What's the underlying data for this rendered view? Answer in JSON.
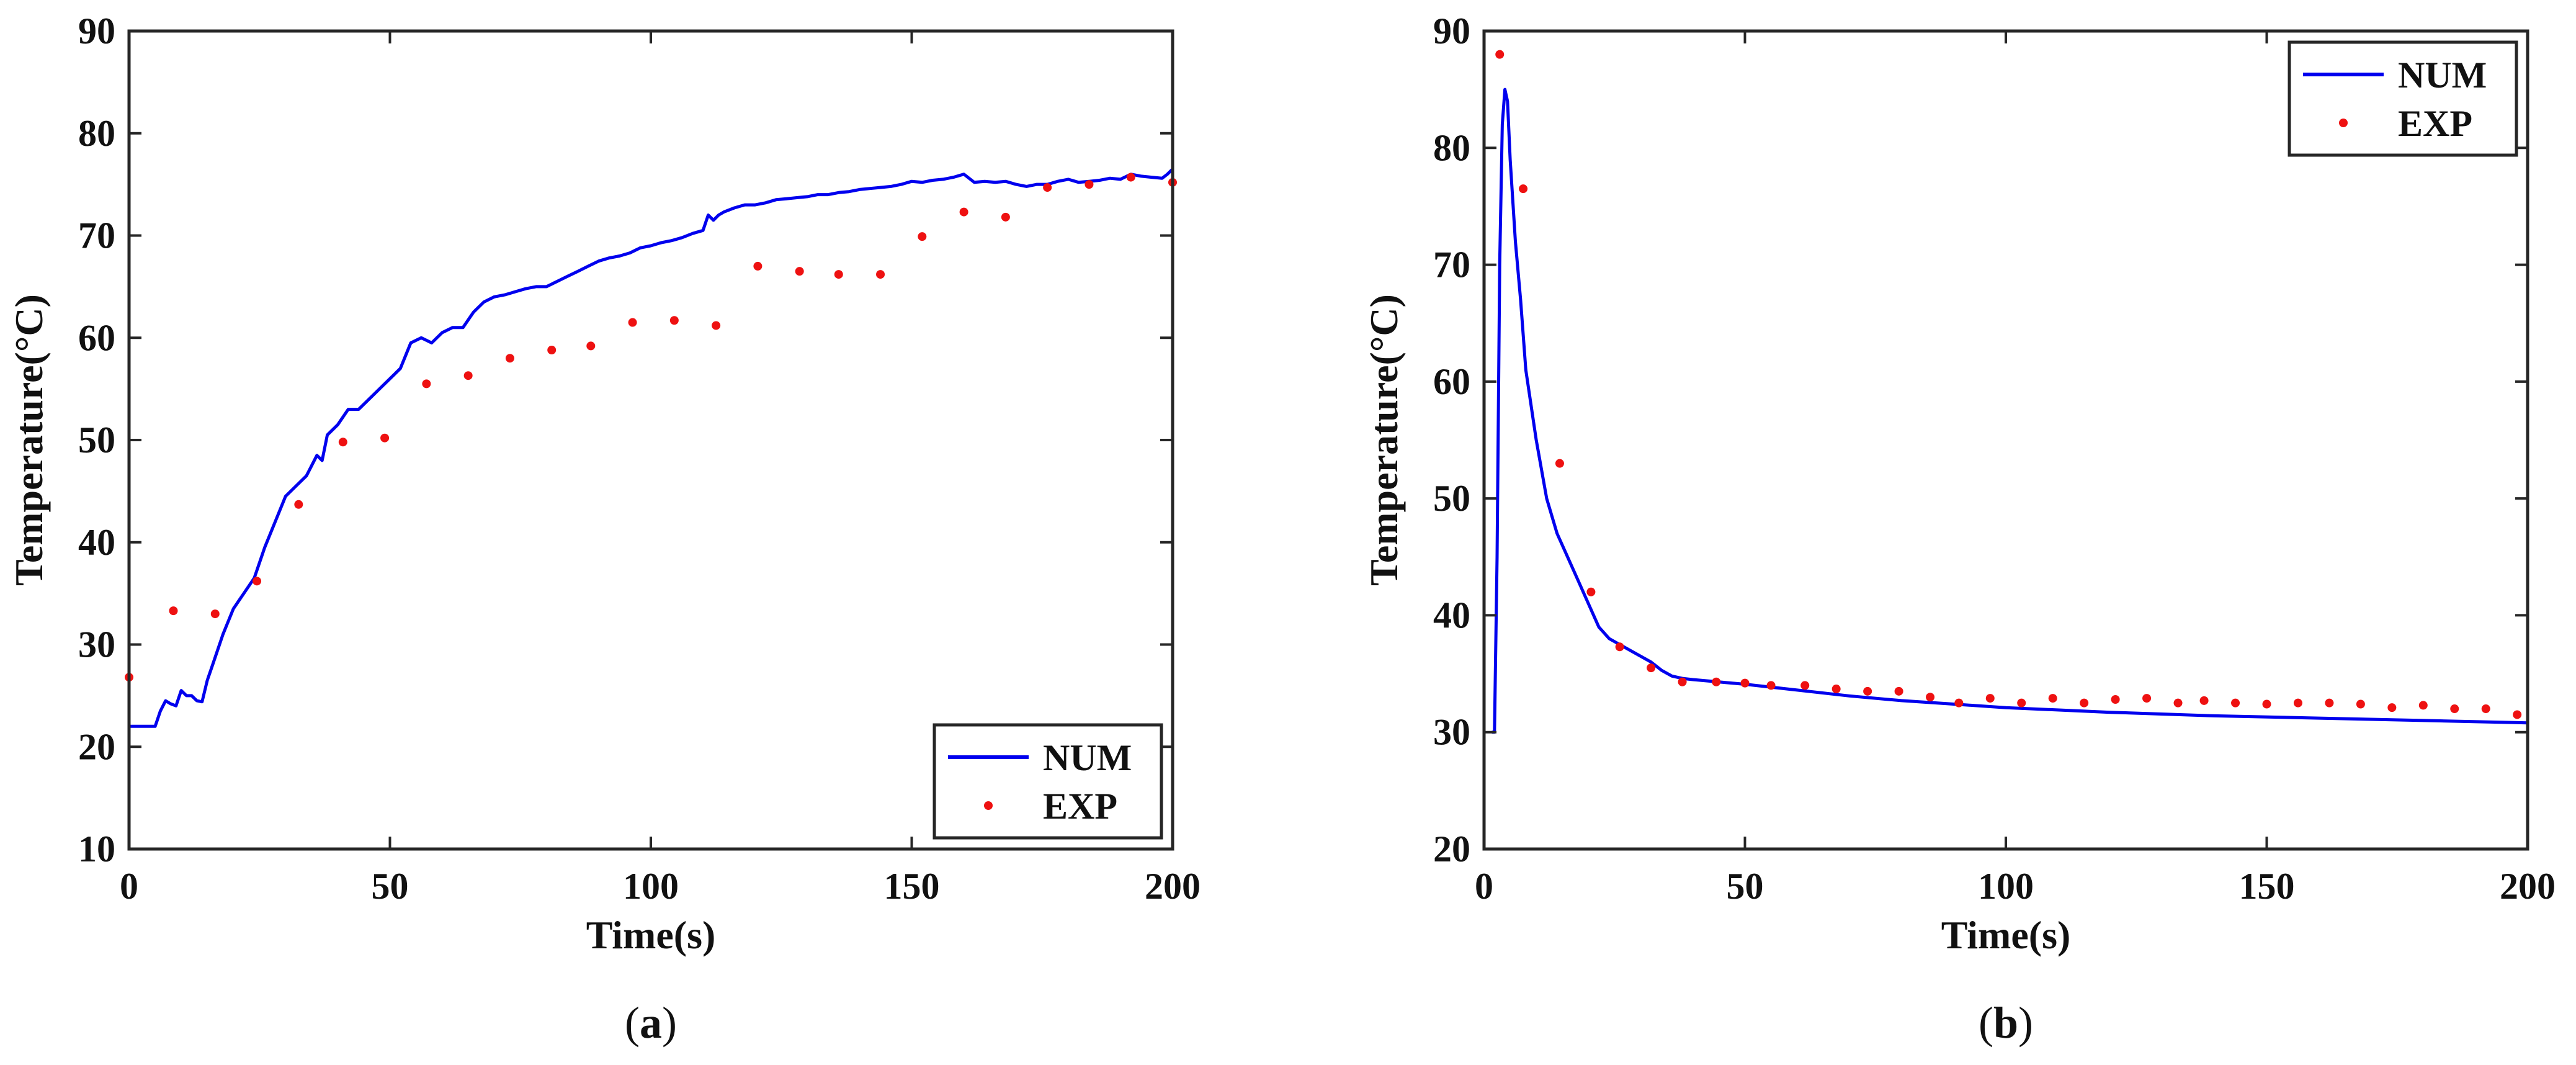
{
  "colors": {
    "num": "#0000ee",
    "exp": "#ee1111",
    "axis": "#262626"
  },
  "chart_data": [
    {
      "type": "line",
      "caption": "a",
      "xlabel": "Time(s)",
      "ylabel": "Temperature(°C)",
      "xlim": [
        0,
        200
      ],
      "ylim": [
        10,
        90
      ],
      "xticks": [
        "0",
        "50",
        "100",
        "150",
        "200"
      ],
      "yticks": [
        "10",
        "20",
        "30",
        "40",
        "50",
        "60",
        "70",
        "80",
        "90"
      ],
      "legend": {
        "position": "bottom-right",
        "entries": [
          "NUM",
          "EXP"
        ]
      },
      "series": [
        {
          "name": "NUM",
          "style": "line",
          "x": [
            0,
            5,
            6,
            7,
            8,
            9,
            10,
            11,
            12,
            13,
            14,
            15,
            16,
            18,
            20,
            22,
            24,
            26,
            28,
            30,
            32,
            34,
            36,
            37,
            38,
            40,
            42,
            44,
            46,
            48,
            50,
            52,
            54,
            56,
            58,
            60,
            62,
            64,
            66,
            68,
            70,
            72,
            74,
            76,
            78,
            80,
            82,
            84,
            86,
            88,
            90,
            92,
            94,
            96,
            98,
            100,
            102,
            104,
            106,
            108,
            110,
            111,
            112,
            113,
            114,
            116,
            118,
            120,
            122,
            124,
            126,
            128,
            130,
            132,
            134,
            136,
            138,
            140,
            142,
            144,
            146,
            148,
            150,
            152,
            154,
            156,
            158,
            160,
            162,
            164,
            166,
            168,
            170,
            172,
            174,
            176,
            178,
            180,
            182,
            184,
            186,
            188,
            190,
            192,
            194,
            196,
            198,
            199,
            200
          ],
          "y": [
            22,
            22,
            23.5,
            24.5,
            24.2,
            24,
            25.5,
            25,
            25,
            24.5,
            24.4,
            26.5,
            28,
            31,
            33.5,
            35,
            36.5,
            39.5,
            42,
            44.5,
            45.5,
            46.5,
            48.5,
            48,
            50.5,
            51.5,
            53,
            53,
            54,
            55,
            56,
            57,
            59.5,
            60,
            59.5,
            60.5,
            61,
            61,
            62.5,
            63.5,
            64,
            64.2,
            64.5,
            64.8,
            65,
            65,
            65.5,
            66,
            66.5,
            67,
            67.5,
            67.8,
            68,
            68.3,
            68.8,
            69,
            69.3,
            69.5,
            69.8,
            70.2,
            70.5,
            72,
            71.5,
            72,
            72.3,
            72.7,
            73,
            73,
            73.2,
            73.5,
            73.6,
            73.7,
            73.8,
            74,
            74,
            74.2,
            74.3,
            74.5,
            74.6,
            74.7,
            74.8,
            75,
            75.3,
            75.2,
            75.4,
            75.5,
            75.7,
            76,
            75.2,
            75.3,
            75.2,
            75.3,
            75,
            74.8,
            75,
            75,
            75.3,
            75.5,
            75.2,
            75.3,
            75.4,
            75.6,
            75.5,
            76,
            75.8,
            75.7,
            75.6,
            76,
            76.5
          ]
        },
        {
          "name": "EXP",
          "style": "scatter",
          "x": [
            0,
            8.5,
            16.5,
            24.5,
            32.5,
            41,
            49,
            57,
            65,
            73,
            81,
            88.5,
            96.5,
            104.5,
            112.5,
            120.5,
            128.5,
            136,
            144,
            152,
            160,
            168,
            176,
            184,
            192,
            200
          ],
          "y": [
            26.8,
            33.3,
            33,
            36.2,
            43.7,
            49.8,
            50.2,
            55.5,
            56.3,
            58,
            58.8,
            59.2,
            61.5,
            61.7,
            61.2,
            67,
            66.5,
            66.2,
            66.2,
            69.9,
            72.3,
            71.8,
            74.7,
            75,
            75.7,
            75.2
          ]
        }
      ]
    },
    {
      "type": "line",
      "caption": "b",
      "xlabel": "Time(s)",
      "ylabel": "Temperature(°C)",
      "xlim": [
        0,
        200
      ],
      "ylim": [
        20,
        90
      ],
      "xticks": [
        "0",
        "50",
        "100",
        "150",
        "200"
      ],
      "yticks": [
        "20",
        "30",
        "40",
        "50",
        "60",
        "70",
        "80",
        "90"
      ],
      "legend": {
        "position": "top-right",
        "entries": [
          "NUM",
          "EXP"
        ]
      },
      "series": [
        {
          "name": "NUM",
          "style": "line",
          "x": [
            1.5,
            2,
            2.5,
            3,
            3.5,
            4,
            4.5,
            5,
            6,
            7,
            8,
            9,
            10,
            12,
            14,
            16,
            18,
            20,
            22,
            24,
            26,
            28,
            30,
            32,
            34,
            36,
            38,
            40,
            45,
            50,
            60,
            70,
            80,
            90,
            100,
            120,
            140,
            160,
            180,
            200
          ],
          "y": [
            30,
            30,
            45,
            70,
            82,
            85,
            84,
            79,
            72,
            67,
            61,
            58,
            55,
            50,
            47,
            45,
            43,
            41,
            39,
            38,
            37.5,
            37,
            36.5,
            36,
            35.3,
            34.8,
            34.6,
            34.5,
            34.3,
            34.1,
            33.6,
            33.1,
            32.7,
            32.4,
            32.1,
            31.7,
            31.4,
            31.2,
            31,
            30.8
          ]
        },
        {
          "name": "EXP",
          "style": "scatter",
          "x": [
            3,
            7.5,
            14.5,
            20.5,
            26,
            32,
            38,
            44.5,
            50,
            55,
            61.5,
            67.5,
            73.5,
            79.5,
            85.5,
            91,
            97,
            103,
            109,
            115,
            121,
            127,
            133,
            138,
            144,
            150,
            156,
            162,
            168,
            174,
            180,
            186,
            192,
            198
          ],
          "y": [
            88,
            76.5,
            53,
            42,
            37.3,
            35.5,
            34.3,
            34.3,
            34.2,
            34,
            34,
            33.7,
            33.5,
            33.5,
            33,
            32.5,
            32.9,
            32.5,
            32.9,
            32.5,
            32.8,
            32.9,
            32.5,
            32.7,
            32.5,
            32.4,
            32.5,
            32.5,
            32.4,
            32.1,
            32.3,
            32,
            32,
            31.5
          ]
        }
      ]
    }
  ]
}
